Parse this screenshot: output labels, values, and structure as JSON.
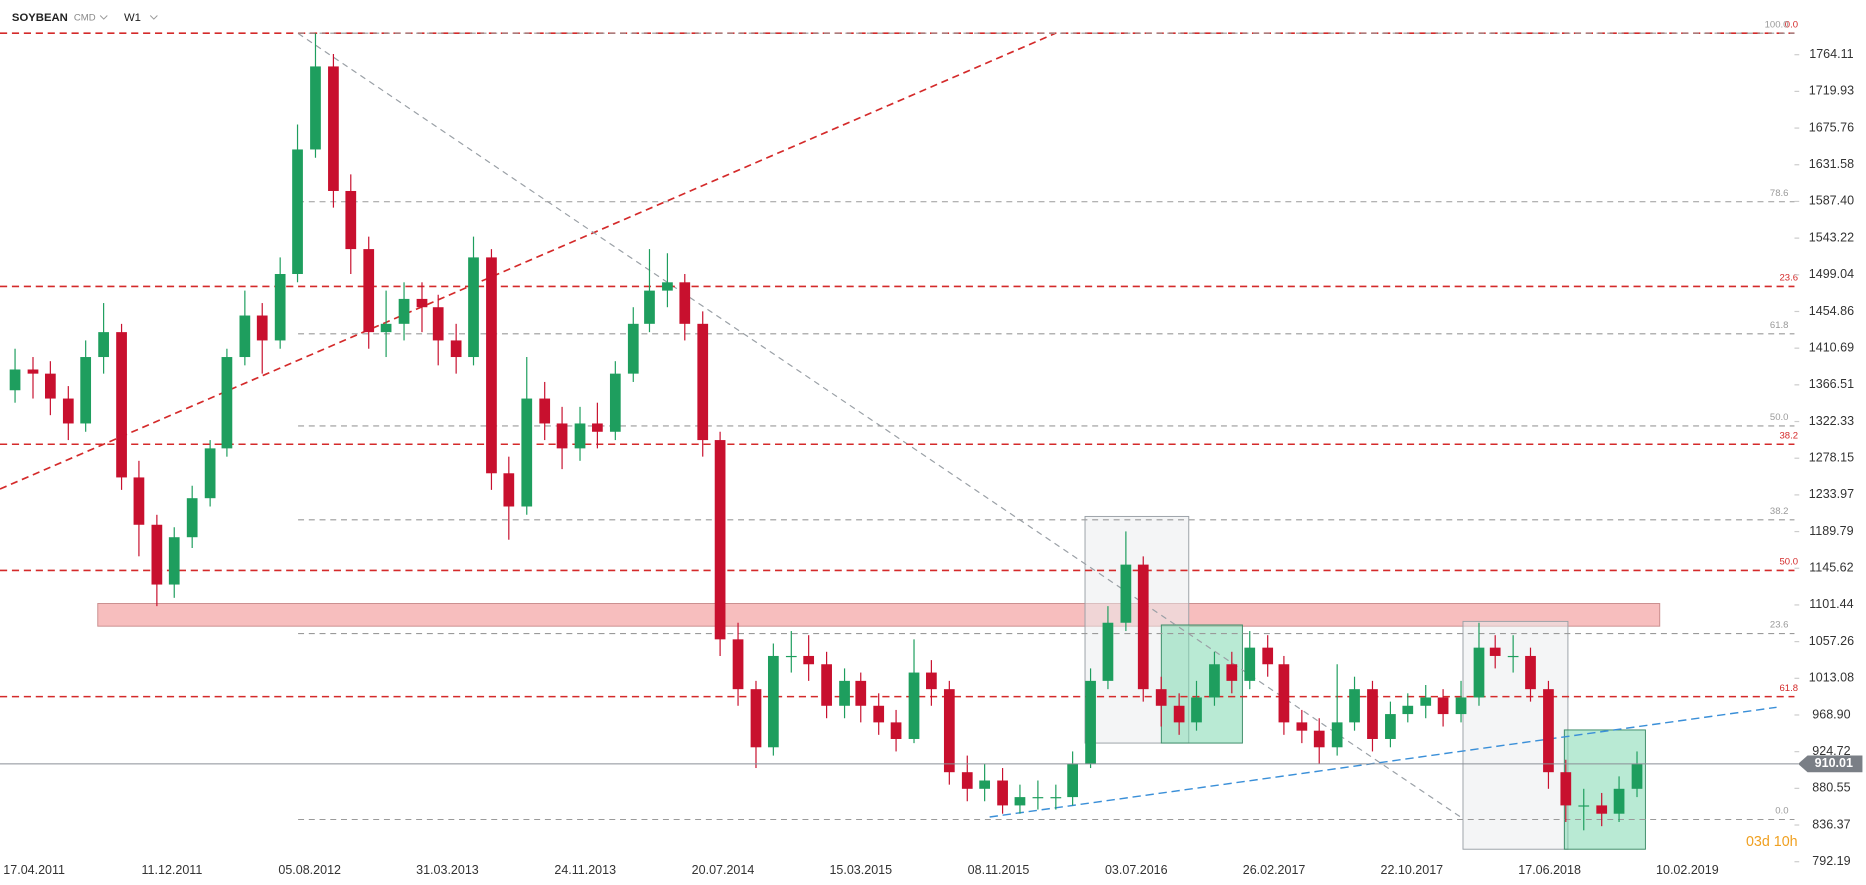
{
  "chart_data": {
    "type": "candlestick",
    "header": {
      "symbol": "SOYBEAN",
      "market": "CMD",
      "interval": "W1"
    },
    "countdown": "03d 10h",
    "x": [
      "15.03.2011",
      "15.04.2011",
      "15.05.2011",
      "15.06.2011",
      "15.07.2011",
      "15.08.2011",
      "15.09.2011",
      "15.10.2011",
      "15.11.2011",
      "15.12.2011",
      "15.01.2012",
      "15.02.2012",
      "15.03.2012",
      "15.04.2012",
      "15.05.2012",
      "15.06.2012",
      "15.07.2012",
      "15.08.2012",
      "15.09.2012",
      "15.10.2012",
      "15.11.2012",
      "15.12.2012",
      "15.01.2013",
      "15.02.2013",
      "15.03.2013",
      "15.04.2013",
      "15.05.2013",
      "15.06.2013",
      "15.07.2013",
      "15.08.2013",
      "15.09.2013",
      "15.10.2013",
      "15.11.2013",
      "15.12.2013",
      "15.01.2014",
      "15.02.2014",
      "15.03.2014",
      "15.04.2014",
      "15.05.2014",
      "15.06.2014",
      "15.07.2014",
      "15.08.2014",
      "15.09.2014",
      "15.10.2014",
      "15.11.2014",
      "15.12.2014",
      "15.01.2015",
      "15.02.2015",
      "15.03.2015",
      "15.04.2015",
      "15.05.2015",
      "15.06.2015",
      "15.07.2015",
      "15.08.2015",
      "15.09.2015",
      "15.10.2015",
      "15.11.2015",
      "15.12.2015",
      "15.01.2016",
      "15.02.2016",
      "15.03.2016",
      "15.04.2016",
      "15.05.2016",
      "15.06.2016",
      "15.07.2016",
      "15.08.2016",
      "15.09.2016",
      "15.10.2016",
      "15.11.2016",
      "15.12.2016",
      "15.01.2017",
      "15.02.2017",
      "15.03.2017",
      "15.04.2017",
      "15.05.2017",
      "15.06.2017",
      "15.07.2017",
      "15.08.2017",
      "15.09.2017",
      "15.10.2017",
      "15.11.2017",
      "15.12.2017",
      "15.01.2018",
      "15.02.2018",
      "15.03.2018",
      "15.04.2018",
      "15.05.2018",
      "15.06.2018",
      "15.07.2018",
      "15.08.2018",
      "15.09.2018",
      "15.10.2018",
      "15.11.2018"
    ],
    "open": [
      1360,
      1385,
      1380,
      1350,
      1320,
      1400,
      1430,
      1255,
      1198,
      1126,
      1183,
      1230,
      1290,
      1400,
      1450,
      1420,
      1500,
      1650,
      1750,
      1600,
      1530,
      1430,
      1440,
      1470,
      1460,
      1420,
      1400,
      1520,
      1260,
      1220,
      1350,
      1320,
      1290,
      1320,
      1310,
      1380,
      1440,
      1480,
      1490,
      1440,
      1300,
      1060,
      1000,
      930,
      1040,
      1040,
      1030,
      980,
      1010,
      980,
      960,
      940,
      1020,
      1000,
      900,
      880,
      890,
      860,
      870,
      870,
      870,
      910,
      1010,
      1080,
      1150,
      1000,
      980,
      960,
      990,
      1030,
      1010,
      1050,
      1030,
      960,
      950,
      930,
      960,
      1000,
      940,
      970,
      980,
      990,
      970,
      990,
      1050,
      1040,
      1040,
      1000,
      900,
      860,
      860,
      850,
      880
    ],
    "high": [
      1410,
      1400,
      1395,
      1365,
      1420,
      1465,
      1440,
      1275,
      1210,
      1195,
      1245,
      1300,
      1410,
      1480,
      1465,
      1520,
      1680,
      1790,
      1765,
      1620,
      1545,
      1480,
      1490,
      1490,
      1475,
      1440,
      1545,
      1530,
      1280,
      1400,
      1370,
      1340,
      1340,
      1345,
      1395,
      1460,
      1530,
      1525,
      1500,
      1455,
      1310,
      1080,
      1010,
      1055,
      1070,
      1065,
      1045,
      1025,
      1020,
      995,
      975,
      1060,
      1035,
      1010,
      920,
      910,
      905,
      885,
      890,
      885,
      925,
      1025,
      1100,
      1190,
      1160,
      1015,
      995,
      1010,
      1045,
      1045,
      1070,
      1065,
      1040,
      975,
      965,
      1030,
      1015,
      1010,
      985,
      995,
      1005,
      1000,
      1010,
      1080,
      1065,
      1065,
      1050,
      1010,
      915,
      880,
      875,
      895,
      925
    ],
    "low": [
      1345,
      1350,
      1330,
      1300,
      1310,
      1380,
      1240,
      1160,
      1100,
      1110,
      1170,
      1220,
      1280,
      1390,
      1380,
      1410,
      1490,
      1640,
      1580,
      1500,
      1410,
      1400,
      1420,
      1430,
      1390,
      1380,
      1390,
      1240,
      1180,
      1210,
      1300,
      1265,
      1275,
      1290,
      1300,
      1370,
      1430,
      1460,
      1420,
      1280,
      1040,
      980,
      905,
      920,
      1020,
      1010,
      965,
      965,
      960,
      945,
      925,
      935,
      980,
      885,
      865,
      865,
      850,
      850,
      855,
      855,
      860,
      905,
      1000,
      1070,
      985,
      955,
      945,
      950,
      980,
      995,
      1000,
      1015,
      945,
      935,
      910,
      920,
      950,
      925,
      930,
      960,
      965,
      955,
      960,
      980,
      1025,
      1020,
      985,
      880,
      840,
      830,
      835,
      840,
      870
    ],
    "close": [
      1385,
      1380,
      1350,
      1320,
      1400,
      1430,
      1255,
      1198,
      1126,
      1183,
      1230,
      1290,
      1400,
      1450,
      1420,
      1500,
      1650,
      1750,
      1600,
      1530,
      1430,
      1440,
      1470,
      1460,
      1420,
      1400,
      1520,
      1260,
      1220,
      1350,
      1320,
      1290,
      1320,
      1310,
      1380,
      1440,
      1480,
      1490,
      1440,
      1300,
      1060,
      1000,
      930,
      1040,
      1040,
      1030,
      980,
      1010,
      980,
      960,
      940,
      1020,
      1000,
      900,
      880,
      890,
      860,
      870,
      870,
      870,
      910,
      1010,
      1080,
      1150,
      1000,
      980,
      960,
      990,
      1030,
      1010,
      1050,
      1030,
      960,
      950,
      930,
      960,
      1000,
      940,
      970,
      980,
      990,
      970,
      990,
      1050,
      1040,
      1040,
      1000,
      900,
      860,
      860,
      850,
      880,
      910.01
    ],
    "up_color": "#1e9e5e",
    "down_color": "#c8102e",
    "xlim": [
      "17.02.2011",
      "14.08.2019"
    ],
    "xticks": [
      "17.04.2011",
      "11.12.2011",
      "05.08.2012",
      "31.03.2013",
      "24.11.2013",
      "20.07.2014",
      "15.03.2015",
      "08.11.2015",
      "03.07.2016",
      "26.02.2017",
      "22.10.2017",
      "17.06.2018",
      "10.02.2019"
    ],
    "ylim": [
      790,
      1830
    ],
    "yticks": [
      1764.11,
      1719.93,
      1675.76,
      1631.58,
      {
        "value": 1587.4,
        "label": "1587.40"
      },
      1543.22,
      1499.04,
      1454.86,
      1410.69,
      1366.51,
      1322.33,
      1278.15,
      1233.97,
      1189.79,
      1145.62,
      1101.44,
      1057.26,
      1013.08,
      {
        "value": 968.9,
        "label": "968.90"
      },
      924.72,
      880.55,
      836.37,
      792.19
    ],
    "levels": [
      {
        "label": "0.0",
        "value": 1790,
        "color": "#d42a2a"
      },
      {
        "label": "23.6",
        "value": 1485,
        "color": "#d42a2a"
      },
      {
        "label": "38.2",
        "value": 1295,
        "color": "#d42a2a"
      },
      {
        "label": "50.0",
        "value": 1143,
        "color": "#d42a2a"
      },
      {
        "label": "61.8",
        "value": 991,
        "color": "#d42a2a"
      },
      {
        "label": "100.0",
        "value": 1790,
        "color": "#9a9a9a"
      },
      {
        "label": "78.6",
        "value": 1587,
        "color": "#9a9a9a"
      },
      {
        "label": "61.8",
        "value": 1428,
        "color": "#9a9a9a"
      },
      {
        "label": "50.0",
        "value": 1317,
        "color": "#9a9a9a"
      },
      {
        "label": "38.2",
        "value": 1204,
        "color": "#9a9a9a"
      },
      {
        "label": "23.6",
        "value": 1067,
        "color": "#9a9a9a"
      },
      {
        "label": "0.0",
        "value": 843,
        "color": "#9a9a9a"
      }
    ]
  }
}
